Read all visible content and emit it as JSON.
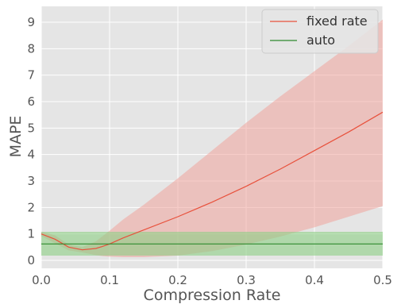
{
  "chart_data": {
    "type": "line",
    "xlabel": "Compression Rate",
    "ylabel": "MAPE",
    "xlim": [
      0.0,
      0.5
    ],
    "ylim": [
      -0.3,
      9.6
    ],
    "xticks": [
      0.0,
      0.1,
      0.2,
      0.3,
      0.4,
      0.5
    ],
    "xtick_labels": [
      "0.0",
      "0.1",
      "0.2",
      "0.3",
      "0.4",
      "0.5"
    ],
    "yticks": [
      0,
      1,
      2,
      3,
      4,
      5,
      6,
      7,
      8,
      9
    ],
    "ytick_labels": [
      "0",
      "1",
      "2",
      "3",
      "4",
      "5",
      "6",
      "7",
      "8",
      "9"
    ],
    "grid": true,
    "legend_position": "top-right",
    "series": [
      {
        "name": "fixed rate",
        "color": "#e8513c",
        "band_color": "#f0a49c",
        "x": [
          0.0,
          0.02,
          0.04,
          0.06,
          0.08,
          0.09,
          0.1,
          0.12,
          0.15,
          0.2,
          0.25,
          0.3,
          0.35,
          0.4,
          0.45,
          0.5
        ],
        "y": [
          1.0,
          0.8,
          0.5,
          0.4,
          0.45,
          0.53,
          0.62,
          0.85,
          1.15,
          1.65,
          2.2,
          2.8,
          3.45,
          4.15,
          4.85,
          5.6
        ],
        "lower": [
          0.92,
          0.65,
          0.38,
          0.3,
          0.2,
          0.16,
          0.14,
          0.12,
          0.12,
          0.18,
          0.35,
          0.6,
          0.9,
          1.25,
          1.65,
          2.05
        ],
        "upper": [
          1.08,
          0.95,
          0.6,
          0.5,
          0.72,
          0.92,
          1.12,
          1.55,
          2.1,
          3.1,
          4.15,
          5.2,
          6.2,
          7.15,
          8.1,
          9.1
        ]
      },
      {
        "name": "auto",
        "color": "#2e8b2e",
        "band_color": "#8ccf84",
        "x": [
          0.0,
          0.5
        ],
        "y": [
          0.62,
          0.62
        ],
        "lower": [
          0.18,
          0.18
        ],
        "upper": [
          1.08,
          1.08
        ]
      }
    ]
  }
}
